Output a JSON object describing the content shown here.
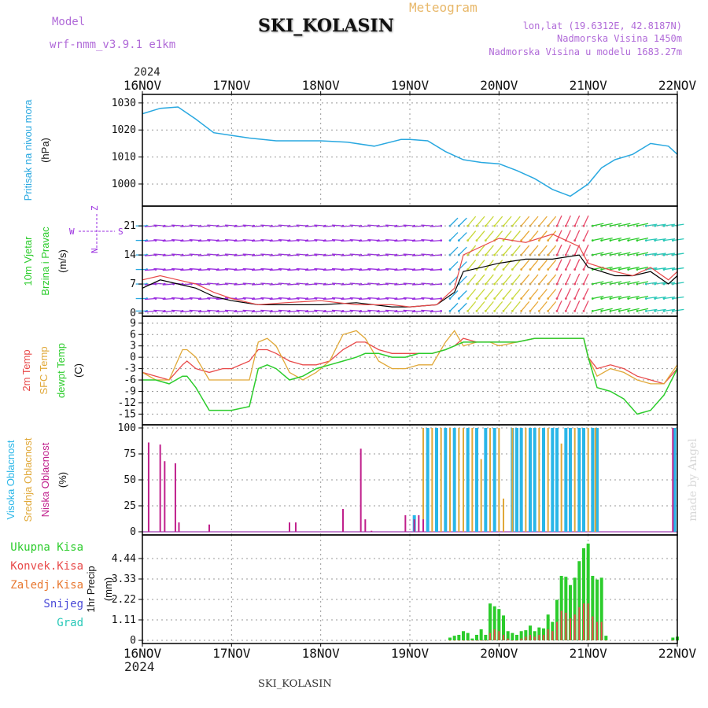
{
  "header": {
    "title": "SKI_KOLASIN",
    "model_label": "Model",
    "model": "wrf-nmm_v3.9.1 e1km",
    "meteogram": "Meteogram",
    "lonlat": "lon,lat (19.6312E, 42.8187N)",
    "elevation": "Nadmorska Visina 1450m",
    "model_elevation": "Nadmorska Visina u modelu 1683.27m",
    "year": "2024",
    "credit": "made by Angel",
    "footer": "SKI_KOLASIN"
  },
  "colors": {
    "pressure": "#29a8e0",
    "temp2m": "#e84a4a",
    "sfc_temp": "#e0a838",
    "dewpt": "#2ccc2c",
    "high_cloud": "#29b6e8",
    "mid_cloud": "#e0a838",
    "low_cloud": "#c0208c",
    "total_precip": "#2ccc2c",
    "conv_precip": "#e84a4a",
    "snow": "#4a4ad8",
    "wind_purple": "#9a2ee0"
  },
  "chart_data": [
    {
      "type": "line",
      "panel": "pressure",
      "ylabel_lines": [
        "Pritisak na nivou mora",
        "(hPa)"
      ],
      "ylim": [
        993,
        1032
      ],
      "yticks": [
        "1030",
        "1020",
        "1010",
        "1000"
      ],
      "yticks_values": [
        1030,
        1020,
        1010,
        1000
      ],
      "x_dates": [
        "16NOV",
        "17NOV",
        "18NOV",
        "19NOV",
        "20NOV",
        "21NOV",
        "22NOV"
      ],
      "x": [
        0,
        0.2,
        0.4,
        0.6,
        0.8,
        1.0,
        1.2,
        1.5,
        1.8,
        2.0,
        2.3,
        2.6,
        2.9,
        3.0,
        3.2,
        3.4,
        3.6,
        3.8,
        4.0,
        4.2,
        4.4,
        4.6,
        4.8,
        5.0,
        5.15,
        5.3,
        5.5,
        5.7,
        5.9,
        6.0
      ],
      "series": [
        {
          "values": [
            1026,
            1028,
            1028.5,
            1024,
            1019,
            1018,
            1017,
            1016,
            1016,
            1016,
            1015.5,
            1014,
            1016.5,
            1016.5,
            1016,
            1012,
            1009,
            1008,
            1007.5,
            1005,
            1002,
            998,
            995.5,
            1000,
            1006,
            1009,
            1011,
            1015,
            1014,
            1011
          ]
        }
      ]
    },
    {
      "type": "line",
      "panel": "wind",
      "ylabel_lines": [
        "10m Vjetar",
        "Brzina i Pravac",
        "(m/s)"
      ],
      "direction_legend": [
        "W",
        "Z",
        "S",
        "N"
      ],
      "ylim": [
        0,
        25
      ],
      "yticks": [
        "21",
        "14",
        "7",
        "0"
      ],
      "yticks_values": [
        21,
        14,
        7,
        0
      ],
      "x": [
        0,
        0.2,
        0.4,
        0.6,
        0.8,
        1.0,
        1.3,
        1.6,
        2.0,
        2.4,
        2.8,
        3.0,
        3.3,
        3.5,
        3.6,
        3.8,
        4.0,
        4.3,
        4.6,
        4.9,
        5.0,
        5.3,
        5.5,
        5.7,
        5.9,
        6.0
      ],
      "series": [
        {
          "values": [
            6,
            8,
            7,
            6,
            4,
            3,
            2,
            2,
            2,
            2.5,
            1.5,
            1.5,
            2,
            5,
            10,
            11,
            12,
            13,
            13,
            14,
            11,
            9,
            9,
            10,
            7,
            9
          ]
        },
        {
          "values": [
            8,
            9,
            8,
            7,
            5,
            3.5,
            2,
            2.5,
            3,
            2,
            2,
            1.5,
            2,
            6,
            14,
            16,
            18,
            17,
            19,
            16,
            12,
            10,
            9,
            11,
            8,
            10
          ]
        }
      ]
    },
    {
      "type": "line",
      "panel": "temperature",
      "ylabel_lines": [
        "2m Temp",
        "SFC Temp",
        "dewpt Temp",
        "(C)"
      ],
      "ylim": [
        -17,
        10
      ],
      "yticks": [
        "9",
        "6",
        "3",
        "0",
        "-3",
        "-6",
        "-9",
        "-12",
        "-15"
      ],
      "yticks_values": [
        9,
        6,
        3,
        0,
        -3,
        -6,
        -9,
        -12,
        -15
      ],
      "x": [
        0,
        0.15,
        0.3,
        0.45,
        0.5,
        0.6,
        0.75,
        0.9,
        1.0,
        1.2,
        1.3,
        1.4,
        1.5,
        1.65,
        1.8,
        1.95,
        2.1,
        2.25,
        2.4,
        2.5,
        2.65,
        2.8,
        2.95,
        3.1,
        3.25,
        3.4,
        3.5,
        3.6,
        3.75,
        3.9,
        4.0,
        4.2,
        4.4,
        4.6,
        4.8,
        4.95,
        5.0,
        5.1,
        5.25,
        5.4,
        5.55,
        5.7,
        5.85,
        6.0
      ],
      "series": [
        {
          "name": "2m Temp",
          "values": [
            -4,
            -5,
            -6,
            -2,
            -1,
            -3,
            -4,
            -3,
            -3,
            -1,
            2,
            2,
            1,
            -1,
            -2,
            -2,
            -1,
            2,
            4,
            4,
            2,
            1,
            1,
            1,
            1,
            2,
            3,
            5,
            4,
            4,
            4,
            4,
            5,
            5,
            5,
            5,
            0,
            -3,
            -2,
            -3,
            -5,
            -6,
            -7,
            -3
          ]
        },
        {
          "name": "SFC Temp",
          "values": [
            -4,
            -6,
            -6,
            2,
            2,
            0,
            -6,
            -6,
            -6,
            -6,
            4,
            5,
            3,
            -4,
            -6,
            -4,
            -1,
            6,
            7,
            5,
            -1,
            -3,
            -3,
            -2,
            -2,
            4,
            7,
            3,
            4,
            4,
            3,
            4,
            5,
            5,
            5,
            5,
            0,
            -5,
            -3,
            -4,
            -6,
            -7,
            -7,
            -2
          ]
        },
        {
          "name": "dewpt Temp",
          "values": [
            -6,
            -6,
            -7,
            -5,
            -5,
            -8,
            -14,
            -14,
            -14,
            -13,
            -3,
            -2,
            -3,
            -6,
            -5,
            -3,
            -2,
            -1,
            0,
            1,
            1,
            0,
            0,
            1,
            1,
            2,
            3,
            4,
            4,
            4,
            4,
            4,
            5,
            5,
            5,
            5,
            0,
            -8,
            -9,
            -11,
            -15,
            -14,
            -10,
            -3
          ]
        }
      ]
    },
    {
      "type": "bar",
      "panel": "clouds",
      "ylabel_lines": [
        "Visoka Oblacnost",
        "Srednja Oblacnost",
        "Niska Oblacnost",
        "(%)"
      ],
      "ylim": [
        0,
        100
      ],
      "yticks": [
        "100",
        "75",
        "50",
        "25",
        "0"
      ],
      "yticks_values": [
        100,
        75,
        50,
        25,
        0
      ],
      "low_x": [
        0.07,
        0.2,
        0.25,
        0.37,
        0.41,
        0.75,
        1.65,
        1.72,
        2.25,
        2.45,
        2.5,
        2.57,
        2.95,
        3.05,
        3.1,
        3.15,
        5.95
      ],
      "low_values": [
        86,
        84,
        68,
        66,
        9,
        7,
        9,
        9,
        22,
        80,
        12,
        1,
        16,
        12,
        16,
        12,
        100
      ],
      "mid_x": [
        3.15,
        3.25,
        3.35,
        3.45,
        3.55,
        3.6,
        3.7,
        3.8,
        3.9,
        4.0,
        4.05,
        4.15,
        4.3,
        4.45,
        4.55,
        4.7,
        4.85,
        5.0,
        5.08
      ],
      "mid_values": [
        100,
        100,
        100,
        100,
        100,
        100,
        100,
        70,
        100,
        100,
        32,
        100,
        100,
        100,
        100,
        85,
        100,
        100,
        100
      ],
      "high_x": [
        3.05,
        3.2,
        3.3,
        3.4,
        3.5,
        3.65,
        3.75,
        3.85,
        3.95,
        4.15,
        4.2,
        4.25,
        4.35,
        4.4,
        4.5,
        4.6,
        4.65,
        4.75,
        4.8,
        4.9,
        4.95,
        5.05,
        5.1,
        5.97
      ],
      "high_values": [
        16,
        100,
        100,
        100,
        100,
        100,
        100,
        100,
        100,
        100,
        100,
        100,
        100,
        100,
        100,
        100,
        100,
        100,
        100,
        100,
        100,
        100,
        100,
        100
      ]
    },
    {
      "type": "bar",
      "panel": "precip",
      "ylabel_lines": [
        "1hr Precip",
        "(mm)"
      ],
      "legend": [
        "Ukupna Kisa",
        "Konvek.Kisa",
        "Zaledj.Kisa",
        "Snijeg",
        "Grad"
      ],
      "ylim": [
        0,
        5.55
      ],
      "yticks": [
        "4.44",
        "3.33",
        "2.22",
        "1.11",
        "0"
      ],
      "yticks_values": [
        4.44,
        3.33,
        2.22,
        1.11,
        0
      ],
      "x": [
        3.45,
        3.5,
        3.55,
        3.6,
        3.65,
        3.7,
        3.75,
        3.8,
        3.85,
        3.9,
        3.95,
        4.0,
        4.05,
        4.1,
        4.15,
        4.2,
        4.25,
        4.3,
        4.35,
        4.4,
        4.45,
        4.5,
        4.55,
        4.6,
        4.65,
        4.7,
        4.75,
        4.8,
        4.85,
        4.9,
        4.95,
        5.0,
        5.05,
        5.1,
        5.15,
        5.2,
        5.95,
        6.0
      ],
      "values": [
        0.15,
        0.25,
        0.3,
        0.5,
        0.4,
        0.1,
        0.3,
        0.6,
        0.3,
        2.0,
        1.85,
        1.7,
        1.35,
        0.5,
        0.4,
        0.3,
        0.5,
        0.55,
        0.8,
        0.5,
        0.7,
        0.65,
        1.4,
        1.0,
        2.2,
        3.5,
        3.45,
        3.0,
        3.4,
        4.3,
        5.0,
        5.25,
        3.5,
        3.3,
        3.4,
        0.25,
        0.15,
        0.2
      ],
      "conv_values": [
        0,
        0,
        0,
        0,
        0,
        0,
        0,
        0,
        0,
        0.4,
        0.6,
        0.5,
        0.3,
        0.1,
        0,
        0,
        0.1,
        0.2,
        0.3,
        0.2,
        0.3,
        0.3,
        0.6,
        0.5,
        1.0,
        1.6,
        1.5,
        1.2,
        1.4,
        1.8,
        2.0,
        2.0,
        1.3,
        1.0,
        1.0,
        0,
        0,
        0
      ]
    }
  ]
}
